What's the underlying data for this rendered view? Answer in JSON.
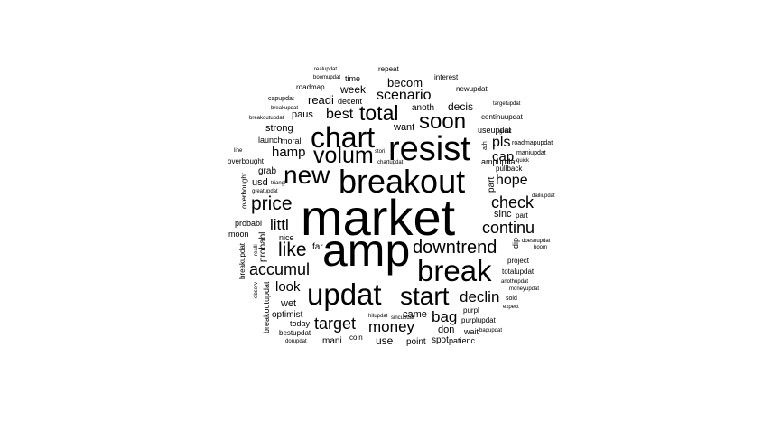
{
  "cloud": {
    "text_color": "#000000",
    "background_color": "#ffffff",
    "words": [
      "market",
      "amp",
      "breakout",
      "resist",
      "chart",
      "break",
      "updat",
      "start",
      "new",
      "volum",
      "downtrend",
      "price",
      "soon",
      "total",
      "like",
      "accumul",
      "continu",
      "check",
      "target",
      "money",
      "bag",
      "declin",
      "scenario",
      "hope",
      "pls",
      "cap",
      "littl",
      "hamp",
      "look",
      "best",
      "week",
      "becom",
      "decis",
      "readi",
      "anoth",
      "paus",
      "strong",
      "want",
      "moral",
      "grab",
      "usd",
      "wet",
      "optimist",
      "today",
      "mani",
      "coin",
      "use",
      "point",
      "spot",
      "patienc",
      "don",
      "wait",
      "came",
      "far",
      "sinc",
      "nice",
      "probabl",
      "moon",
      "decent",
      "time",
      "interest",
      "roadmap",
      "capupdat",
      "boomupdat",
      "realupdat",
      "repeat",
      "newupdat",
      "targetupdat",
      "continuupdat",
      "useupdat",
      "great",
      "roadmapupdat",
      "maniupdat",
      "quick",
      "pullback",
      "dailiupdat",
      "part",
      "doesnupdat",
      "boom",
      "project",
      "totalupdat",
      "anothupdat",
      "moneyupdat",
      "sold",
      "expect",
      "purpl",
      "purplupdat",
      "bagupdat",
      "bestupdat",
      "hitupdat",
      "sincupdat",
      "breakoutupdat",
      "breakupdat",
      "launch",
      "line",
      "overbought",
      "greatupdat",
      "triangl",
      "stori",
      "chartupdat",
      "ampupdat",
      "onli",
      "btc",
      "daili",
      "nsi",
      "hit",
      "observ",
      "realli",
      "dip",
      "ath",
      "dorupdat"
    ]
  }
}
